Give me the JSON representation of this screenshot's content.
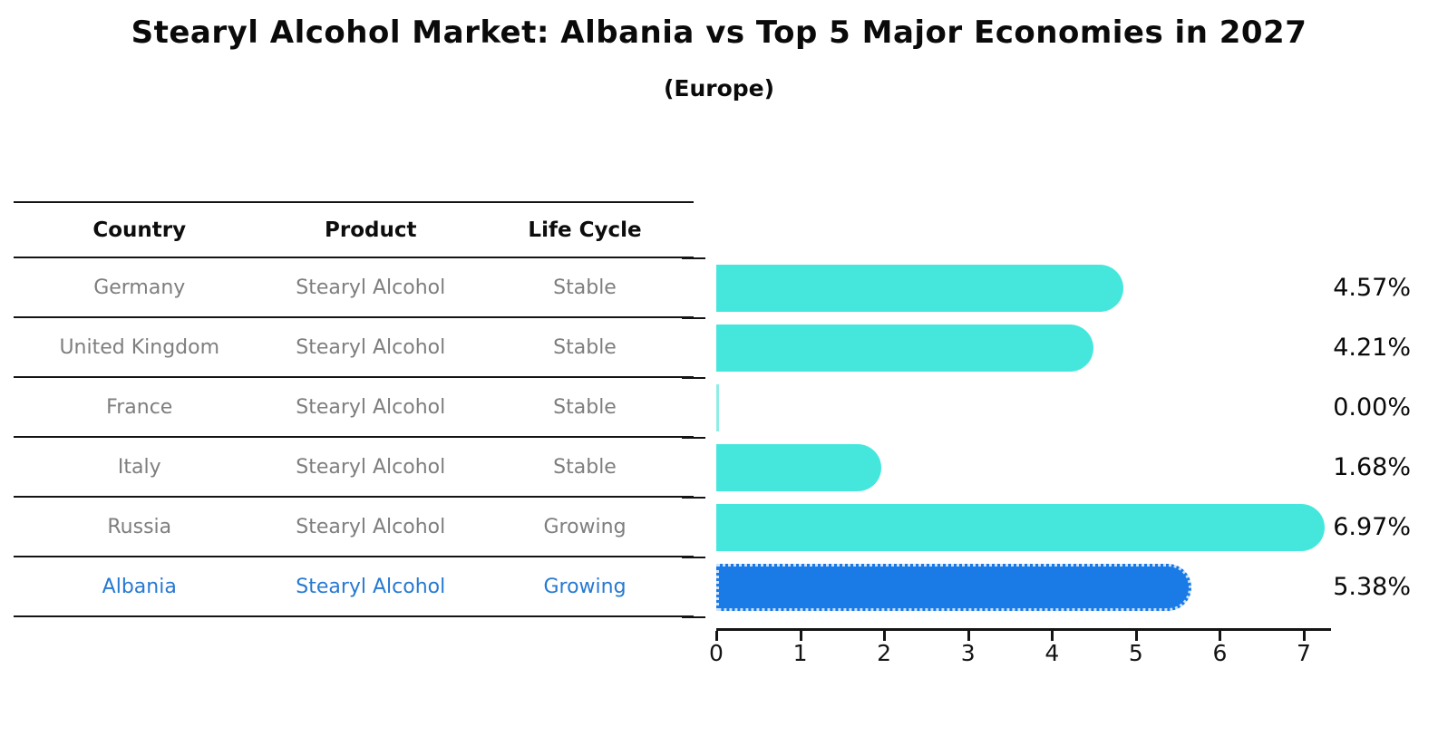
{
  "title": "Stearyl Alcohol Market: Albania vs Top 5 Major Economies in 2027",
  "subtitle": "(Europe)",
  "table": {
    "headers": [
      "Country",
      "Product",
      "Life Cycle"
    ],
    "rows": [
      {
        "country": "Germany",
        "product": "Stearyl Alcohol",
        "life_cycle": "Stable",
        "highlight": false
      },
      {
        "country": "United Kingdom",
        "product": "Stearyl Alcohol",
        "life_cycle": "Stable",
        "highlight": false
      },
      {
        "country": "France",
        "product": "Stearyl Alcohol",
        "life_cycle": "Stable",
        "highlight": false
      },
      {
        "country": "Italy",
        "product": "Stearyl Alcohol",
        "life_cycle": "Stable",
        "highlight": false
      },
      {
        "country": "Russia",
        "product": "Stearyl Alcohol",
        "life_cycle": "Growing",
        "highlight": false
      },
      {
        "country": "Albania",
        "product": "Stearyl Alcohol",
        "life_cycle": "Growing",
        "highlight": true
      }
    ]
  },
  "chart_data": {
    "type": "bar",
    "orientation": "horizontal",
    "title": "Stearyl Alcohol Market: Albania vs Top 5 Major Economies in 2027",
    "subtitle": "(Europe)",
    "categories": [
      "Germany",
      "United Kingdom",
      "France",
      "Italy",
      "Russia",
      "Albania"
    ],
    "values": [
      4.57,
      4.21,
      0.0,
      1.68,
      6.97,
      5.38
    ],
    "value_labels": [
      "4.57%",
      "4.21%",
      "0.00%",
      "1.68%",
      "6.97%",
      "5.38%"
    ],
    "x_ticks": [
      "0",
      "1",
      "2",
      "3",
      "4",
      "5",
      "6",
      "7"
    ],
    "xlim": [
      0,
      7.3
    ],
    "grid": false,
    "legend": "none",
    "highlight_category": "Albania",
    "colors": {
      "bar": "#45e7dd",
      "zero_bar": "#8eeee7",
      "highlight_bar": "#1a7ae6",
      "highlight_text": "#2679d2",
      "table_text": "#7e7e7e",
      "axis": "#141414",
      "label_text": "#0a0a0a"
    }
  }
}
